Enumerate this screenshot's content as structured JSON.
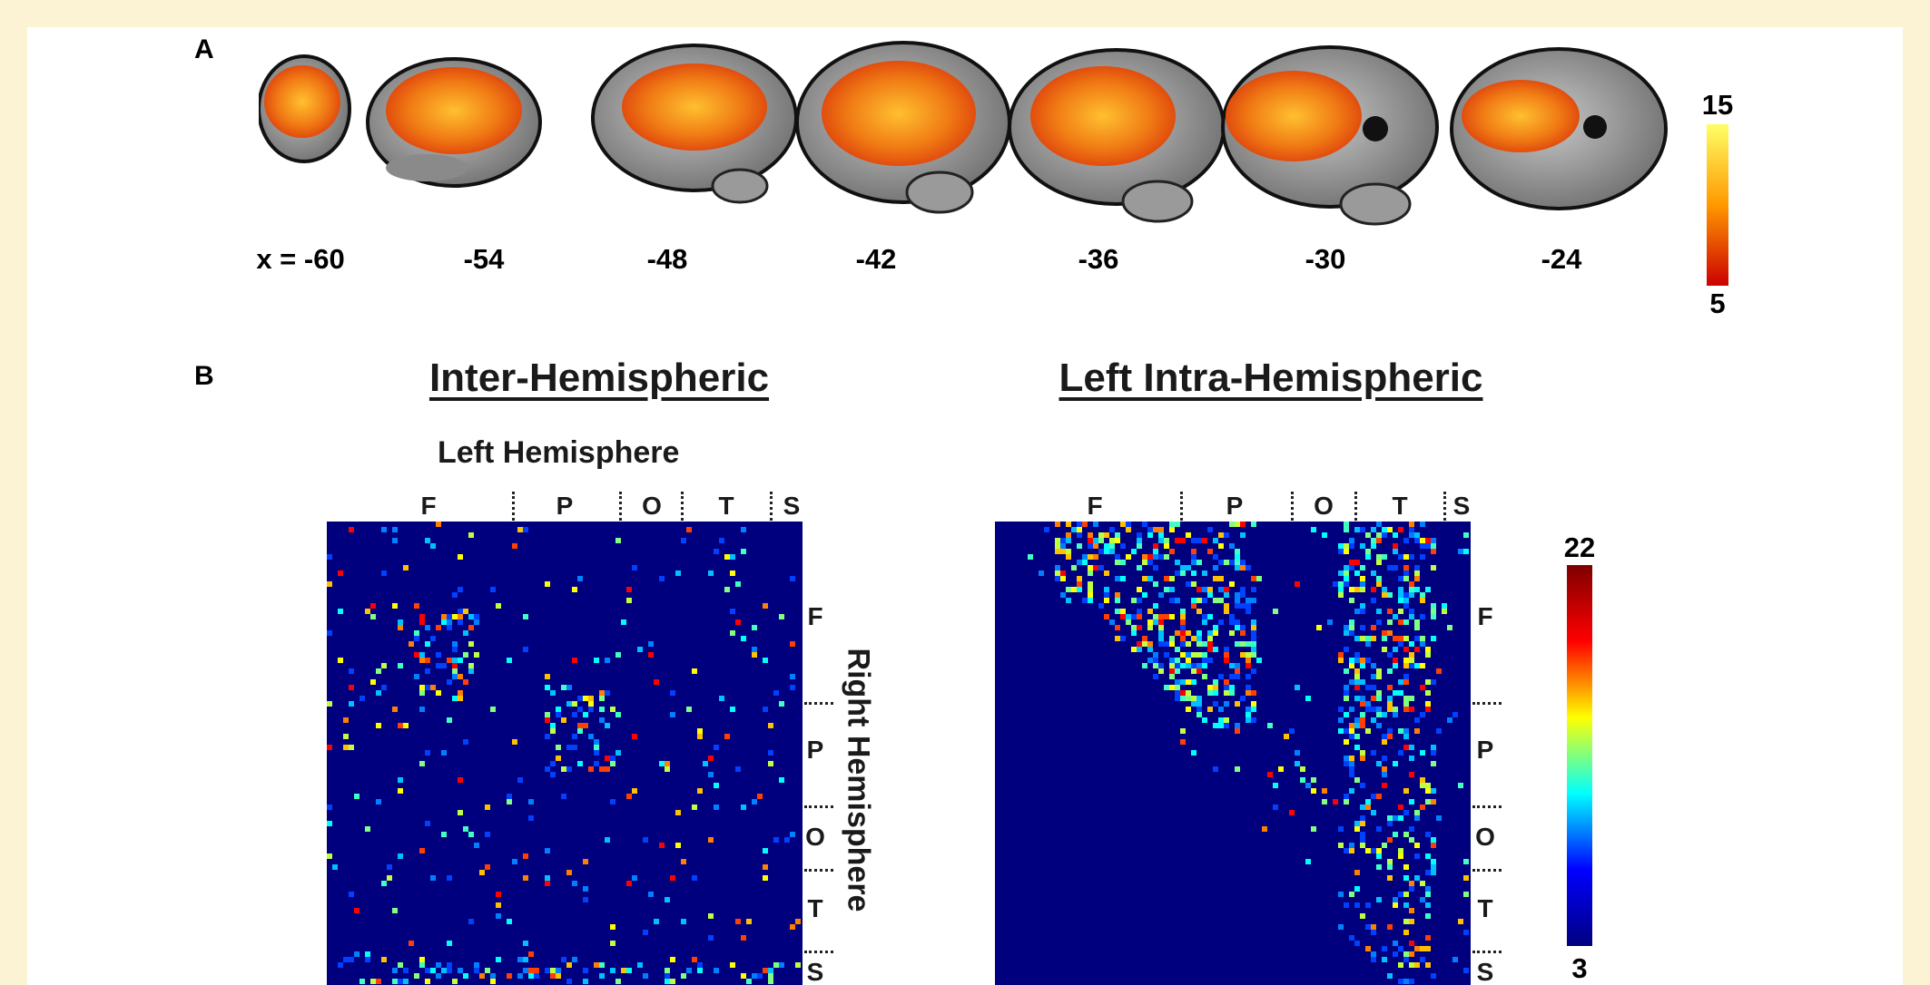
{
  "panel_a": {
    "label": "A",
    "slices": [
      {
        "label": "x = -60"
      },
      {
        "label": "-54"
      },
      {
        "label": "-48"
      },
      {
        "label": "-42"
      },
      {
        "label": "-36"
      },
      {
        "label": "-30"
      },
      {
        "label": "-24"
      }
    ],
    "colorbar": {
      "max": "15",
      "min": "5",
      "colors": [
        "#ffff66",
        "#ff9900",
        "#cc0000"
      ]
    }
  },
  "panel_b": {
    "label": "B",
    "left_title": "Inter-Hemispheric",
    "right_title": "Left Intra-Hemispheric",
    "x_axis_title": "Left Hemisphere",
    "y_axis_title": "Right Hemisphere",
    "lobes_x_left": [
      "F",
      "P",
      "O",
      "T",
      "S"
    ],
    "lobes_x_right": [
      "F",
      "P",
      "O",
      "T",
      "S"
    ],
    "lobes_y_left": [
      "F",
      "P",
      "O",
      "T",
      "S"
    ],
    "lobes_y_right": [
      "F",
      "P",
      "O",
      "T",
      "S"
    ],
    "colorbar": {
      "max": "22",
      "min": "3",
      "colors": [
        "#7f0000",
        "#ff0000",
        "#ffff00",
        "#00ffff",
        "#0000ff",
        "#00007f"
      ]
    }
  }
}
